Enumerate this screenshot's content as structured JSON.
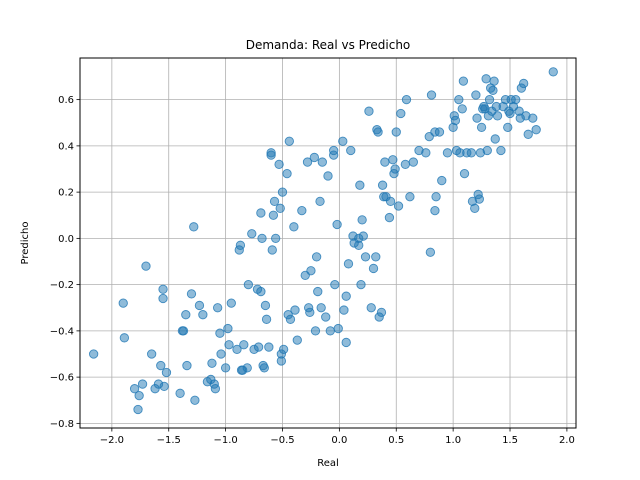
{
  "chart_data": {
    "type": "scatter",
    "title": "Demanda: Real vs Predicho",
    "xlabel": "Real",
    "ylabel": "Predicho",
    "xlim": [
      -2.28,
      2.08
    ],
    "ylim": [
      -0.82,
      0.78
    ],
    "xticks": [
      -2.0,
      -1.5,
      -1.0,
      -0.5,
      0.0,
      0.5,
      1.0,
      1.5,
      2.0
    ],
    "xtick_labels": [
      "−2.0",
      "−1.5",
      "−1.0",
      "−0.5",
      "0.0",
      "0.5",
      "1.0",
      "1.5",
      "2.0"
    ],
    "yticks": [
      -0.8,
      -0.6,
      -0.4,
      -0.2,
      0.0,
      0.2,
      0.4,
      0.6
    ],
    "ytick_labels": [
      "−0.8",
      "−0.6",
      "−0.4",
      "−0.2",
      "0.0",
      "0.2",
      "0.4",
      "0.6"
    ],
    "grid": true,
    "marker_color": "#1f77b4",
    "marker_alpha": 0.5,
    "points": [
      [
        -2.16,
        -0.5
      ],
      [
        -1.9,
        -0.28
      ],
      [
        -1.89,
        -0.43
      ],
      [
        -1.8,
        -0.65
      ],
      [
        -1.77,
        -0.74
      ],
      [
        -1.76,
        -0.68
      ],
      [
        -1.73,
        -0.63
      ],
      [
        -1.7,
        -0.12
      ],
      [
        -1.65,
        -0.5
      ],
      [
        -1.62,
        -0.65
      ],
      [
        -1.59,
        -0.63
      ],
      [
        -1.57,
        -0.55
      ],
      [
        -1.55,
        -0.22
      ],
      [
        -1.55,
        -0.26
      ],
      [
        -1.54,
        -0.64
      ],
      [
        -1.52,
        -0.58
      ],
      [
        -1.4,
        -0.67
      ],
      [
        -1.38,
        -0.4
      ],
      [
        -1.37,
        -0.4
      ],
      [
        -1.35,
        -0.33
      ],
      [
        -1.34,
        -0.55
      ],
      [
        -1.3,
        -0.24
      ],
      [
        -1.28,
        0.05
      ],
      [
        -1.27,
        -0.7
      ],
      [
        -1.23,
        -0.29
      ],
      [
        -1.2,
        -0.33
      ],
      [
        -1.16,
        -0.62
      ],
      [
        -1.13,
        -0.61
      ],
      [
        -1.12,
        -0.54
      ],
      [
        -1.1,
        -0.63
      ],
      [
        -1.09,
        -0.65
      ],
      [
        -1.07,
        -0.3
      ],
      [
        -1.05,
        -0.41
      ],
      [
        -1.04,
        -0.5
      ],
      [
        -1.0,
        -0.56
      ],
      [
        -0.98,
        -0.39
      ],
      [
        -0.97,
        -0.46
      ],
      [
        -0.95,
        -0.28
      ],
      [
        -0.9,
        -0.48
      ],
      [
        -0.88,
        -0.05
      ],
      [
        -0.87,
        -0.03
      ],
      [
        -0.86,
        -0.57
      ],
      [
        -0.85,
        -0.57
      ],
      [
        -0.84,
        -0.46
      ],
      [
        -0.81,
        -0.56
      ],
      [
        -0.8,
        -0.2
      ],
      [
        -0.77,
        0.02
      ],
      [
        -0.75,
        -0.48
      ],
      [
        -0.72,
        -0.22
      ],
      [
        -0.71,
        -0.47
      ],
      [
        -0.69,
        -0.23
      ],
      [
        -0.69,
        0.11
      ],
      [
        -0.68,
        0.0
      ],
      [
        -0.67,
        -0.55
      ],
      [
        -0.66,
        -0.56
      ],
      [
        -0.65,
        -0.29
      ],
      [
        -0.64,
        -0.35
      ],
      [
        -0.62,
        -0.47
      ],
      [
        -0.6,
        0.37
      ],
      [
        -0.6,
        0.36
      ],
      [
        -0.59,
        -0.05
      ],
      [
        -0.58,
        0.1
      ],
      [
        -0.57,
        0.16
      ],
      [
        -0.56,
        0.0
      ],
      [
        -0.53,
        0.32
      ],
      [
        -0.52,
        0.13
      ],
      [
        -0.51,
        -0.5
      ],
      [
        -0.51,
        -0.53
      ],
      [
        -0.5,
        0.2
      ],
      [
        -0.49,
        -0.48
      ],
      [
        -0.46,
        0.28
      ],
      [
        -0.45,
        -0.33
      ],
      [
        -0.44,
        0.42
      ],
      [
        -0.43,
        -0.35
      ],
      [
        -0.4,
        0.05
      ],
      [
        -0.39,
        -0.31
      ],
      [
        -0.37,
        -0.44
      ],
      [
        -0.33,
        0.12
      ],
      [
        -0.3,
        -0.16
      ],
      [
        -0.28,
        0.33
      ],
      [
        -0.27,
        -0.3
      ],
      [
        -0.26,
        -0.32
      ],
      [
        -0.25,
        -0.14
      ],
      [
        -0.22,
        0.35
      ],
      [
        -0.21,
        -0.4
      ],
      [
        -0.2,
        -0.08
      ],
      [
        -0.19,
        -0.23
      ],
      [
        -0.17,
        0.16
      ],
      [
        -0.16,
        -0.3
      ],
      [
        -0.15,
        0.33
      ],
      [
        -0.12,
        -0.34
      ],
      [
        -0.1,
        0.27
      ],
      [
        -0.08,
        -0.4
      ],
      [
        -0.05,
        0.38
      ],
      [
        -0.05,
        0.36
      ],
      [
        -0.04,
        -0.2
      ],
      [
        -0.02,
        0.06
      ],
      [
        -0.01,
        -0.39
      ],
      [
        0.03,
        0.42
      ],
      [
        0.04,
        -0.31
      ],
      [
        0.06,
        -0.25
      ],
      [
        0.06,
        -0.45
      ],
      [
        0.08,
        -0.11
      ],
      [
        0.1,
        0.38
      ],
      [
        0.12,
        0.01
      ],
      [
        0.13,
        -0.02
      ],
      [
        0.17,
        0.0
      ],
      [
        0.17,
        -0.03
      ],
      [
        0.18,
        0.23
      ],
      [
        0.19,
        -0.2
      ],
      [
        0.2,
        0.08
      ],
      [
        0.21,
        0.01
      ],
      [
        0.23,
        -0.08
      ],
      [
        0.26,
        0.55
      ],
      [
        0.28,
        -0.3
      ],
      [
        0.3,
        -0.13
      ],
      [
        0.32,
        -0.08
      ],
      [
        0.33,
        0.47
      ],
      [
        0.34,
        0.46
      ],
      [
        0.35,
        -0.34
      ],
      [
        0.37,
        -0.32
      ],
      [
        0.38,
        0.23
      ],
      [
        0.39,
        0.18
      ],
      [
        0.4,
        0.33
      ],
      [
        0.41,
        0.18
      ],
      [
        0.44,
        0.09
      ],
      [
        0.45,
        0.16
      ],
      [
        0.47,
        0.34
      ],
      [
        0.48,
        0.28
      ],
      [
        0.49,
        0.3
      ],
      [
        0.5,
        0.46
      ],
      [
        0.52,
        0.14
      ],
      [
        0.54,
        0.54
      ],
      [
        0.58,
        0.32
      ],
      [
        0.59,
        0.6
      ],
      [
        0.62,
        0.18
      ],
      [
        0.65,
        0.33
      ],
      [
        0.7,
        0.38
      ],
      [
        0.76,
        0.37
      ],
      [
        0.79,
        0.44
      ],
      [
        0.8,
        -0.06
      ],
      [
        0.81,
        0.62
      ],
      [
        0.84,
        0.12
      ],
      [
        0.84,
        0.46
      ],
      [
        0.85,
        0.18
      ],
      [
        0.88,
        0.46
      ],
      [
        0.9,
        0.25
      ],
      [
        0.95,
        0.37
      ],
      [
        1.0,
        0.48
      ],
      [
        1.01,
        0.53
      ],
      [
        1.02,
        0.51
      ],
      [
        1.03,
        0.38
      ],
      [
        1.05,
        0.6
      ],
      [
        1.06,
        0.37
      ],
      [
        1.08,
        0.56
      ],
      [
        1.09,
        0.68
      ],
      [
        1.1,
        0.28
      ],
      [
        1.12,
        0.37
      ],
      [
        1.16,
        0.37
      ],
      [
        1.17,
        0.16
      ],
      [
        1.19,
        0.13
      ],
      [
        1.2,
        0.62
      ],
      [
        1.21,
        0.52
      ],
      [
        1.22,
        0.19
      ],
      [
        1.23,
        0.17
      ],
      [
        1.24,
        0.37
      ],
      [
        1.25,
        0.48
      ],
      [
        1.26,
        0.56
      ],
      [
        1.27,
        0.57
      ],
      [
        1.28,
        0.56
      ],
      [
        1.29,
        0.69
      ],
      [
        1.3,
        0.38
      ],
      [
        1.31,
        0.53
      ],
      [
        1.32,
        0.6
      ],
      [
        1.33,
        0.65
      ],
      [
        1.34,
        0.55
      ],
      [
        1.35,
        0.64
      ],
      [
        1.36,
        0.68
      ],
      [
        1.37,
        0.43
      ],
      [
        1.38,
        0.57
      ],
      [
        1.39,
        0.53
      ],
      [
        1.42,
        0.38
      ],
      [
        1.44,
        0.57
      ],
      [
        1.46,
        0.6
      ],
      [
        1.48,
        0.48
      ],
      [
        1.49,
        0.55
      ],
      [
        1.5,
        0.54
      ],
      [
        1.51,
        0.6
      ],
      [
        1.53,
        0.57
      ],
      [
        1.55,
        0.6
      ],
      [
        1.58,
        0.55
      ],
      [
        1.59,
        0.52
      ],
      [
        1.6,
        0.65
      ],
      [
        1.62,
        0.67
      ],
      [
        1.64,
        0.53
      ],
      [
        1.66,
        0.45
      ],
      [
        1.7,
        0.52
      ],
      [
        1.73,
        0.47
      ],
      [
        1.88,
        0.72
      ]
    ]
  }
}
